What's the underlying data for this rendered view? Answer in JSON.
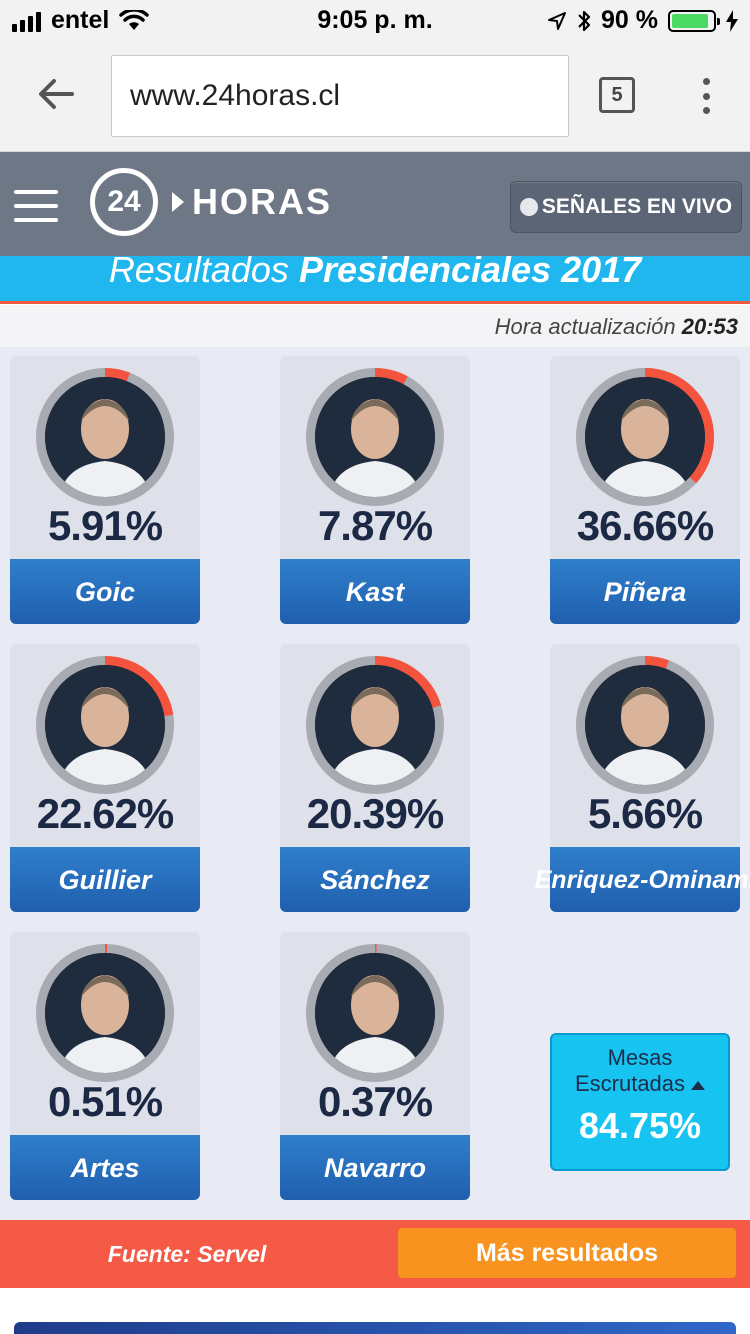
{
  "status_bar": {
    "carrier": "entel",
    "time": "9:05 p. m.",
    "battery": "90 %",
    "battery_level": 0.9
  },
  "browser": {
    "url": "www.24horas.cl",
    "tab_count": "5"
  },
  "header": {
    "logo_number": "24",
    "logo_text": "HORAS",
    "live_button": "SEÑALES EN VIVO"
  },
  "banner": {
    "title_prefix": "Resultados",
    "title_bold": "Presidenciales 2017"
  },
  "update": {
    "label": "Hora actualización",
    "time": "20:53"
  },
  "candidates": [
    {
      "name": "Goic",
      "percent_label": "5.91%",
      "percent": 5.91
    },
    {
      "name": "Kast",
      "percent_label": "7.87%",
      "percent": 7.87
    },
    {
      "name": "Piñera",
      "percent_label": "36.66%",
      "percent": 36.66
    },
    {
      "name": "Guillier",
      "percent_label": "22.62%",
      "percent": 22.62
    },
    {
      "name": "Sánchez",
      "percent_label": "20.39%",
      "percent": 20.39
    },
    {
      "name": "Enriquez-Ominami",
      "name_line1": "Enriquez-",
      "name_line2": "Ominami",
      "percent_label": "5.66%",
      "percent": 5.66
    },
    {
      "name": "Artes",
      "percent_label": "0.51%",
      "percent": 0.51
    },
    {
      "name": "Navarro",
      "percent_label": "0.37%",
      "percent": 0.37
    }
  ],
  "mesas": {
    "label_line1": "Mesas",
    "label_line2": "Escrutadas",
    "value": "84.75%"
  },
  "footer": {
    "source": "Fuente: Servel",
    "more_button": "Más resultados"
  },
  "colors": {
    "ring_track": "#a9abb3",
    "ring_fill": "#f4533d",
    "name_bar": "#2a6fbe",
    "banner": "#20b7ee"
  }
}
